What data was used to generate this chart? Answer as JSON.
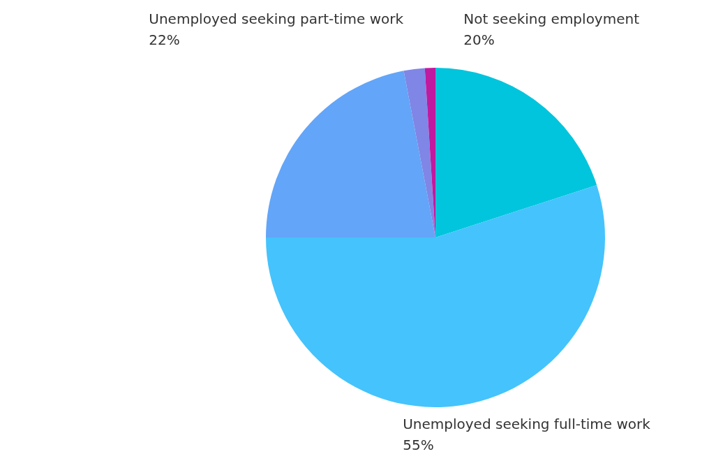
{
  "chart_data": {
    "type": "pie",
    "categories": [
      "Not seeking employment",
      "Unemployed seeking full-time work",
      "Unemployed seeking part-time work",
      null,
      null
    ],
    "values": [
      20,
      55,
      22,
      2,
      1
    ],
    "value_labels": [
      "20%",
      "55%",
      "22%",
      null,
      null
    ],
    "colors": [
      "#00c5dc",
      "#45c3fc",
      "#63a5f8",
      "#7f86e6",
      "#c01aa0"
    ],
    "legend": false
  }
}
